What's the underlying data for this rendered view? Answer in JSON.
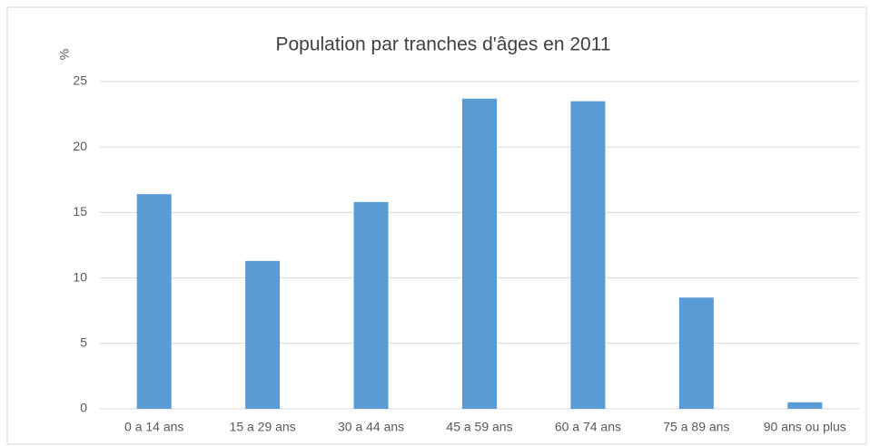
{
  "chart_data": {
    "type": "bar",
    "title": "Population par tranches d'âges en 2011",
    "y_label": "%",
    "categories": [
      "0 a 14 ans",
      "15 a 29 ans",
      "30 a 44 ans",
      "45 a 59 ans",
      "60 a 74 ans",
      "75 a 89 ans",
      "90 ans ou plus"
    ],
    "values": [
      16.4,
      11.3,
      15.8,
      23.7,
      23.5,
      8.5,
      0.5
    ],
    "color": "#5b9bd5",
    "ylim": [
      0,
      25
    ],
    "yticks": [
      0,
      5,
      10,
      15,
      20,
      25
    ],
    "grid": true
  }
}
